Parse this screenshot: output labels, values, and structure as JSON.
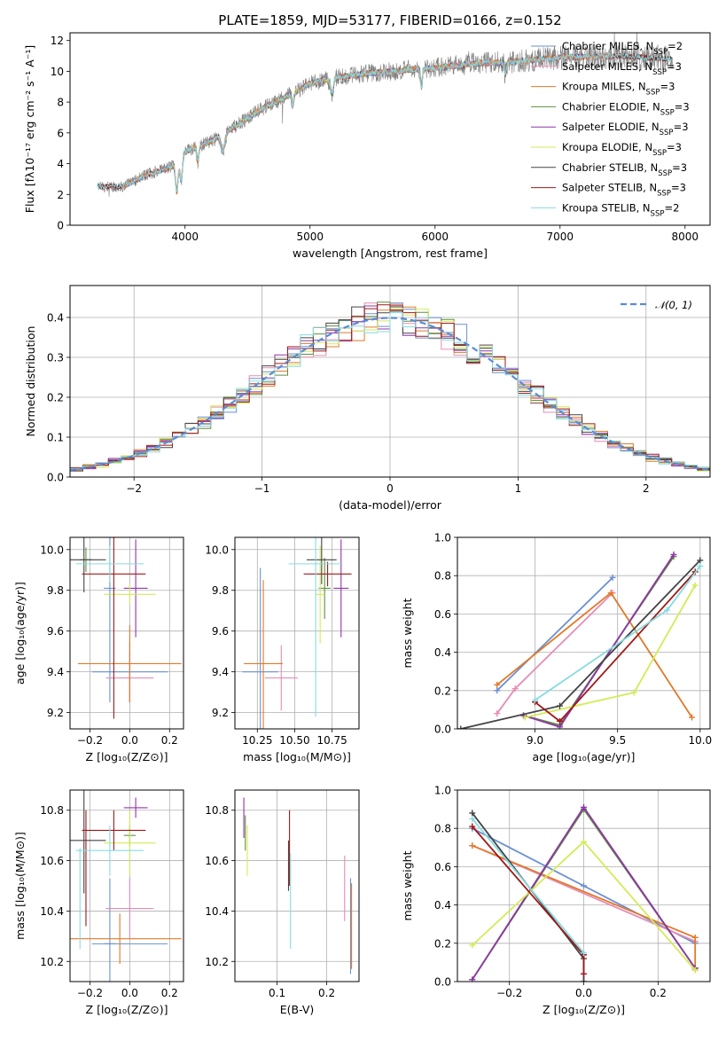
{
  "colors": {
    "chabrier_miles": "#6a8fd4",
    "salpeter_miles": "#e68cb5",
    "kroupa_miles": "#e07a2a",
    "chabrier_elodie": "#5f8f3e",
    "salpeter_elodie": "#8e35a8",
    "kroupa_elodie": "#d4ea56",
    "chabrier_stelib": "#444444",
    "salpeter_stelib": "#a01818",
    "kroupa_stelib": "#86dbe0",
    "data": "#808080",
    "normal": "#5b8bd6"
  },
  "chart_data": [
    {
      "id": "spectrum",
      "type": "line",
      "title": "PLATE=1859, MJD=53177, FIBERID=0166, z=0.152",
      "xlabel": "wavelength [Angstrom, rest frame]",
      "ylabel": "Flux [fλ10⁻¹⁷ erg cm⁻² s⁻¹ A⁻¹]",
      "xlim": [
        3080,
        8200
      ],
      "ylim": [
        0,
        12.5
      ],
      "xticks": [
        4000,
        5000,
        6000,
        7000,
        8000
      ],
      "yticks": [
        0,
        2,
        4,
        6,
        8,
        10,
        12
      ],
      "grid": false,
      "legend_position": "top-right",
      "legend": [
        {
          "prefix": "Chabrier MILES, N",
          "sub": "SSP",
          "suffix": "=2",
          "color_key": "chabrier_miles"
        },
        {
          "prefix": "Salpeter MILES, N",
          "sub": "SSP",
          "suffix": "=3",
          "color_key": "salpeter_miles"
        },
        {
          "prefix": "Kroupa MILES, N",
          "sub": "SSP",
          "suffix": "=3",
          "color_key": "kroupa_miles"
        },
        {
          "prefix": "Chabrier ELODIE, N",
          "sub": "SSP",
          "suffix": "=3",
          "color_key": "chabrier_elodie"
        },
        {
          "prefix": "Salpeter ELODIE, N",
          "sub": "SSP",
          "suffix": "=3",
          "color_key": "salpeter_elodie"
        },
        {
          "prefix": "Kroupa ELODIE, N",
          "sub": "SSP",
          "suffix": "=3",
          "color_key": "kroupa_elodie"
        },
        {
          "prefix": "Chabrier STELIB, N",
          "sub": "SSP",
          "suffix": "=3",
          "color_key": "chabrier_stelib"
        },
        {
          "prefix": "Salpeter STELIB, N",
          "sub": "SSP",
          "suffix": "=3",
          "color_key": "salpeter_stelib"
        },
        {
          "prefix": "Kroupa STELIB, N",
          "sub": "SSP",
          "suffix": "=2",
          "color_key": "kroupa_stelib"
        }
      ],
      "continuum": {
        "x": [
          3300,
          3500,
          3700,
          3900,
          4000,
          4200,
          4400,
          4600,
          4800,
          5000,
          5200,
          5500,
          5800,
          6000,
          6300,
          6600,
          7000,
          7500,
          7900
        ],
        "y": [
          2.5,
          2.5,
          3.3,
          3.8,
          4.8,
          5.4,
          6.4,
          7.5,
          8.3,
          9.2,
          9.6,
          9.9,
          10.1,
          10.2,
          10.5,
          10.6,
          10.9,
          11.0,
          10.8
        ]
      },
      "series_ranges": {
        "data": [
          3300,
          7900
        ],
        "chabrier_miles": [
          3500,
          7420
        ],
        "salpeter_miles": [
          3500,
          7420
        ],
        "kroupa_miles": [
          3500,
          7420
        ],
        "chabrier_elodie": [
          3900,
          6800
        ],
        "salpeter_elodie": [
          3900,
          6800
        ],
        "kroupa_elodie": [
          3900,
          6800
        ],
        "chabrier_stelib": [
          3300,
          7900
        ],
        "salpeter_stelib": [
          3300,
          7900
        ],
        "kroupa_stelib": [
          3300,
          7900
        ]
      }
    },
    {
      "id": "residuals",
      "type": "step",
      "xlabel": "(data-model)/error",
      "ylabel": "Normed distribution",
      "xlim": [
        -2.5,
        2.5
      ],
      "ylim": [
        0,
        0.48
      ],
      "xticks": [
        -2,
        -1,
        0,
        1,
        2
      ],
      "yticks": [
        0.0,
        0.1,
        0.2,
        0.3,
        0.4
      ],
      "grid": true,
      "bin_width": 0.1,
      "legend_position": "top-right",
      "legend": [
        {
          "label": "𝒩(0, 1)",
          "color_key": "normal",
          "style": "dashed"
        }
      ]
    },
    {
      "id": "age_vs_Z",
      "type": "errorbar",
      "xlabel": "Z [log₁₀(Z/Z⊙)]",
      "ylabel": "age  [log₁₀(age/yr)]",
      "xlim": [
        -0.3,
        0.27
      ],
      "ylim": [
        9.12,
        10.06
      ],
      "xticks": [
        -0.2,
        0.0,
        0.2
      ],
      "yticks": [
        9.2,
        9.4,
        9.6,
        9.8,
        10.0
      ],
      "grid": true,
      "points": [
        {
          "c": "chabrier_miles",
          "x": 0.0,
          "xe": 0.19,
          "y": 9.4,
          "ye": 0.15
        },
        {
          "c": "chabrier_miles",
          "x": -0.1,
          "xe": 0.03,
          "y": 9.81,
          "ye": 0.56
        },
        {
          "c": "salpeter_miles",
          "x": 0.0,
          "xe": 0.12,
          "y": 9.37,
          "ye": 0.12
        },
        {
          "c": "kroupa_miles",
          "x": 0.0,
          "xe": 0.26,
          "y": 9.44,
          "ye": 0.19
        },
        {
          "c": "chabrier_elodie",
          "x": -0.22,
          "xe": 0.03,
          "y": 9.95,
          "ye": 0.06
        },
        {
          "c": "salpeter_elodie",
          "x": 0.03,
          "xe": 0.06,
          "y": 9.81,
          "ye": 0.24
        },
        {
          "c": "kroupa_elodie",
          "x": 0.0,
          "xe": 0.13,
          "y": 9.78,
          "ye": 0.05
        },
        {
          "c": "chabrier_stelib",
          "x": -0.23,
          "xe": 0.11,
          "y": 9.95,
          "ye": 0.16
        },
        {
          "c": "salpeter_stelib",
          "x": -0.08,
          "xe": 0.16,
          "y": 9.88,
          "ye": 0.71
        },
        {
          "c": "kroupa_stelib",
          "x": -0.1,
          "xe": 0.17,
          "y": 9.93,
          "ye": 0.09
        }
      ]
    },
    {
      "id": "age_vs_mass",
      "type": "errorbar",
      "xlabel": "mass [log₁₀(M/M⊙)]",
      "ylabel": "",
      "xlim": [
        10.1,
        10.93
      ],
      "ylim": [
        9.12,
        10.06
      ],
      "xticks": [
        10.25,
        10.5,
        10.75
      ],
      "yticks": [
        9.2,
        9.4,
        9.6,
        9.8,
        10.0
      ],
      "grid": true,
      "points": [
        {
          "c": "chabrier_miles",
          "x": 10.27,
          "xe": 0.12,
          "y": 9.4,
          "ye": 0.51
        },
        {
          "c": "salpeter_miles",
          "x": 10.41,
          "xe": 0.11,
          "y": 9.37,
          "ye": 0.16
        },
        {
          "c": "kroupa_miles",
          "x": 10.29,
          "xe": 0.13,
          "y": 9.44,
          "ye": 0.41
        },
        {
          "c": "chabrier_elodie",
          "x": 10.7,
          "xe": 0.04,
          "y": 9.81,
          "ye": 0.15
        },
        {
          "c": "salpeter_elodie",
          "x": 10.81,
          "xe": 0.05,
          "y": 9.81,
          "ye": 0.24
        },
        {
          "c": "kroupa_elodie",
          "x": 10.67,
          "xe": 0.03,
          "y": 9.78,
          "ye": 0.24
        },
        {
          "c": "chabrier_stelib",
          "x": 10.68,
          "xe": 0.1,
          "y": 9.95,
          "ye": 0.12
        },
        {
          "c": "salpeter_stelib",
          "x": 10.72,
          "xe": 0.16,
          "y": 9.88,
          "ye": 0.06
        },
        {
          "c": "kroupa_stelib",
          "x": 10.64,
          "xe": 0.18,
          "y": 9.93,
          "ye": 0.75
        }
      ]
    },
    {
      "id": "weight_vs_age",
      "type": "line",
      "xlabel": "age  [log₁₀(age/yr)]",
      "ylabel": "mass weight",
      "xlim": [
        8.53,
        10.06
      ],
      "ylim": [
        0,
        1.0
      ],
      "xticks": [
        9.0,
        9.5,
        10.0
      ],
      "yticks": [
        0.0,
        0.2,
        0.4,
        0.6,
        0.8,
        1.0
      ],
      "grid": true,
      "series": [
        {
          "c": "chabrier_miles",
          "x": [
            8.77,
            9.47
          ],
          "y": [
            0.2,
            0.79
          ]
        },
        {
          "c": "salpeter_miles",
          "x": [
            8.77,
            8.88,
            9.47
          ],
          "y": [
            0.08,
            0.21,
            0.71
          ]
        },
        {
          "c": "kroupa_miles",
          "x": [
            8.77,
            9.46,
            9.95
          ],
          "y": [
            0.23,
            0.71,
            0.06
          ]
        },
        {
          "c": "chabrier_elodie",
          "x": [
            8.93,
            9.15,
            9.84
          ],
          "y": [
            0.07,
            0.02,
            0.9
          ]
        },
        {
          "c": "salpeter_elodie",
          "x": [
            8.93,
            9.15,
            9.84
          ],
          "y": [
            0.07,
            0.01,
            0.91
          ]
        },
        {
          "c": "kroupa_elodie",
          "x": [
            8.94,
            9.6,
            9.97
          ],
          "y": [
            0.06,
            0.19,
            0.75
          ]
        },
        {
          "c": "chabrier_stelib",
          "x": [
            8.55,
            9.15,
            10.0
          ],
          "y": [
            0.0,
            0.12,
            0.88
          ]
        },
        {
          "c": "salpeter_stelib",
          "x": [
            9.0,
            9.15,
            9.97
          ],
          "y": [
            0.14,
            0.04,
            0.82
          ]
        },
        {
          "c": "kroupa_stelib",
          "x": [
            9.0,
            9.8,
            10.0
          ],
          "y": [
            0.15,
            0.62,
            0.85
          ]
        }
      ]
    },
    {
      "id": "mass_vs_Z",
      "type": "errorbar",
      "xlabel": "Z [log₁₀(Z/Z⊙)]",
      "ylabel": "mass [log₁₀(M/M⊙)]",
      "xlim": [
        -0.3,
        0.27
      ],
      "ylim": [
        10.12,
        10.88
      ],
      "xticks": [
        -0.2,
        0.0,
        0.2
      ],
      "yticks": [
        10.2,
        10.4,
        10.6,
        10.8
      ],
      "grid": true,
      "points": [
        {
          "c": "chabrier_miles",
          "x": -0.1,
          "xe": 0.03,
          "y": 10.27,
          "ye": 0.26
        },
        {
          "c": "chabrier_miles",
          "x": 0.0,
          "xe": 0.19,
          "y": 10.27,
          "ye": 0.0
        },
        {
          "c": "salpeter_miles",
          "x": 0.0,
          "xe": 0.12,
          "y": 10.41,
          "ye": 0.12
        },
        {
          "c": "kroupa_miles",
          "x": -0.05,
          "xe": 0.31,
          "y": 10.29,
          "ye": 0.1
        },
        {
          "c": "chabrier_elodie",
          "x": 0.0,
          "xe": 0.03,
          "y": 10.7,
          "ye": 0.04
        },
        {
          "c": "salpeter_elodie",
          "x": 0.03,
          "xe": 0.06,
          "y": 10.81,
          "ye": 0.04
        },
        {
          "c": "kroupa_elodie",
          "x": 0.0,
          "xe": 0.13,
          "y": 10.67,
          "ye": 0.13
        },
        {
          "c": "chabrier_stelib",
          "x": -0.23,
          "xe": 0.11,
          "y": 10.68,
          "ye": 0.21
        },
        {
          "c": "salpeter_stelib",
          "x": -0.08,
          "xe": 0.16,
          "y": 10.72,
          "ye": 0.08
        },
        {
          "c": "salpeter_stelib",
          "x": -0.22,
          "xe": 0.0,
          "y": 10.57,
          "ye": 0.23
        },
        {
          "c": "kroupa_stelib",
          "x": -0.1,
          "xe": 0.17,
          "y": 10.64,
          "ye": 0.1
        },
        {
          "c": "kroupa_stelib",
          "x": -0.25,
          "xe": 0.0,
          "y": 10.45,
          "ye": 0.2
        }
      ]
    },
    {
      "id": "mass_vs_EBV",
      "type": "errorbar",
      "xlabel": "E(B-V)",
      "ylabel": "",
      "xlim": [
        0.015,
        0.265
      ],
      "ylim": [
        10.12,
        10.88
      ],
      "xticks": [
        0.1,
        0.2
      ],
      "yticks": [
        10.2,
        10.4,
        10.6,
        10.8
      ],
      "grid": true,
      "points": [
        {
          "c": "chabrier_miles",
          "x": 0.248,
          "xe": 0,
          "y": 10.34,
          "ye": 0.19
        },
        {
          "c": "salpeter_miles",
          "x": 0.236,
          "xe": 0,
          "y": 10.49,
          "ye": 0.13
        },
        {
          "c": "kroupa_miles",
          "x": 0.25,
          "xe": 0,
          "y": 10.34,
          "ye": 0.17
        },
        {
          "c": "chabrier_elodie",
          "x": 0.036,
          "xe": 0,
          "y": 10.71,
          "ye": 0.07
        },
        {
          "c": "salpeter_elodie",
          "x": 0.033,
          "xe": 0,
          "y": 10.77,
          "ye": 0.08
        },
        {
          "c": "kroupa_elodie",
          "x": 0.04,
          "xe": 0,
          "y": 10.64,
          "ye": 0.1
        },
        {
          "c": "chabrier_stelib",
          "x": 0.123,
          "xe": 0,
          "y": 10.58,
          "ye": 0.1
        },
        {
          "c": "salpeter_stelib",
          "x": 0.125,
          "xe": 0,
          "y": 10.65,
          "ye": 0.15
        },
        {
          "c": "kroupa_stelib",
          "x": 0.127,
          "xe": 0,
          "y": 10.44,
          "ye": 0.19
        }
      ]
    },
    {
      "id": "weight_vs_Z",
      "type": "line",
      "xlabel": "Z [log₁₀(Z/Z⊙)]",
      "ylabel": "mass weight",
      "xlim": [
        -0.34,
        0.34
      ],
      "ylim": [
        0,
        1.0
      ],
      "xticks": [
        -0.2,
        0.0,
        0.2
      ],
      "yticks": [
        0.0,
        0.2,
        0.4,
        0.6,
        0.8,
        1.0
      ],
      "grid": true,
      "series": [
        {
          "c": "chabrier_miles",
          "x": [
            -0.3,
            0.0,
            0.3
          ],
          "y": [
            0.8,
            0.5,
            0.2
          ]
        },
        {
          "c": "salpeter_miles",
          "x": [
            -0.3,
            0.3
          ],
          "y": [
            0.71,
            0.21
          ]
        },
        {
          "c": "kroupa_miles",
          "x": [
            -0.3,
            0.3,
            0.3
          ],
          "y": [
            0.71,
            0.23,
            0.06
          ]
        },
        {
          "c": "chabrier_elodie",
          "x": [
            -0.3,
            0.0,
            0.3
          ],
          "y": [
            0.01,
            0.9,
            0.07
          ]
        },
        {
          "c": "salpeter_elodie",
          "x": [
            -0.3,
            0.0,
            0.3
          ],
          "y": [
            0.01,
            0.91,
            0.07
          ]
        },
        {
          "c": "kroupa_elodie",
          "x": [
            -0.3,
            0.0,
            0.3
          ],
          "y": [
            0.19,
            0.73,
            0.06
          ]
        },
        {
          "c": "chabrier_stelib",
          "x": [
            -0.3,
            0.0,
            0.0
          ],
          "y": [
            0.88,
            0.12,
            0.0
          ]
        },
        {
          "c": "salpeter_stelib",
          "x": [
            -0.3,
            0.0,
            0.0
          ],
          "y": [
            0.81,
            0.14,
            0.04
          ]
        },
        {
          "c": "kroupa_stelib",
          "x": [
            -0.3,
            0.0
          ],
          "y": [
            0.85,
            0.15
          ]
        }
      ]
    }
  ]
}
